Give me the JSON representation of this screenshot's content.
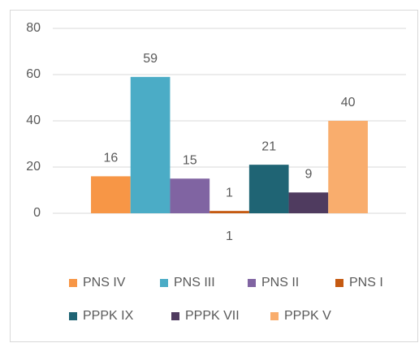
{
  "chart_data": {
    "type": "bar",
    "categories": [
      "1"
    ],
    "series": [
      {
        "name": "PNS IV",
        "color": "#f79646",
        "values": [
          16
        ]
      },
      {
        "name": "PNS III",
        "color": "#4bacc6",
        "values": [
          59
        ]
      },
      {
        "name": "PNS II",
        "color": "#8064a2",
        "values": [
          15
        ]
      },
      {
        "name": "PNS I",
        "color": "#c55a11",
        "values": [
          1
        ]
      },
      {
        "name": "PPPK IX",
        "color": "#1f6474",
        "values": [
          21
        ]
      },
      {
        "name": "PPPK VII",
        "color": "#4f3b5f",
        "values": [
          9
        ]
      },
      {
        "name": "PPPK V",
        "color": "#f9ad6d",
        "values": [
          40
        ]
      }
    ],
    "ylim": [
      0,
      80
    ],
    "yticks": [
      0,
      20,
      40,
      60,
      80
    ],
    "grid": true,
    "legend": "bottom"
  }
}
